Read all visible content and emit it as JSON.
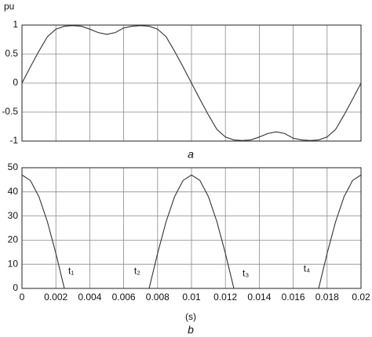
{
  "chart_data": [
    {
      "type": "line",
      "ylabel": "pu",
      "caption": "a",
      "x": [
        0,
        0.0005,
        0.001,
        0.0015,
        0.002,
        0.0025,
        0.003,
        0.0035,
        0.004,
        0.0045,
        0.005,
        0.0055,
        0.006,
        0.0065,
        0.007,
        0.0075,
        0.008,
        0.0085,
        0.009,
        0.0095,
        0.01,
        0.0105,
        0.011,
        0.0115,
        0.012,
        0.0125,
        0.013,
        0.0135,
        0.014,
        0.0145,
        0.015,
        0.0155,
        0.016,
        0.0165,
        0.017,
        0.0175,
        0.018,
        0.0185,
        0.019,
        0.0195,
        0.02
      ],
      "series": [
        {
          "color": "#333333",
          "values": [
            0,
            0.28,
            0.55,
            0.8,
            0.93,
            0.98,
            0.99,
            0.98,
            0.93,
            0.87,
            0.84,
            0.87,
            0.95,
            0.98,
            0.99,
            0.98,
            0.93,
            0.8,
            0.55,
            0.28,
            0,
            -0.28,
            -0.55,
            -0.8,
            -0.93,
            -0.98,
            -0.99,
            -0.98,
            -0.93,
            -0.87,
            -0.84,
            -0.87,
            -0.95,
            -0.98,
            -0.99,
            -0.98,
            -0.93,
            -0.8,
            -0.55,
            -0.28,
            0
          ]
        }
      ],
      "xlim": [
        0,
        0.02
      ],
      "xticks": [
        0,
        0.002,
        0.004,
        0.006,
        0.008,
        0.01,
        0.012,
        0.014,
        0.016,
        0.018,
        0.02
      ],
      "show_xtick_labels": false,
      "ylim": [
        -1,
        1
      ],
      "yticks": [
        -1,
        -0.5,
        0,
        0.5,
        1
      ],
      "grid": true
    },
    {
      "type": "line",
      "xlabel": "(s)",
      "caption": "b",
      "x": [
        0,
        0.0005,
        0.001,
        0.0015,
        0.002,
        0.0025,
        0.003,
        0.0035,
        0.004,
        0.0045,
        0.005,
        0.0055,
        0.006,
        0.0065,
        0.007,
        0.0075,
        0.008,
        0.0085,
        0.009,
        0.0095,
        0.01,
        0.0105,
        0.011,
        0.0115,
        0.012,
        0.0125,
        0.013,
        0.0135,
        0.014,
        0.0145,
        0.015,
        0.0155,
        0.016,
        0.0165,
        0.017,
        0.0175,
        0.018,
        0.0185,
        0.019,
        0.0195,
        0.02
      ],
      "series": [
        {
          "color": "#333333",
          "values": [
            47,
            44.7,
            38,
            27.6,
            14.5,
            0,
            null,
            null,
            null,
            null,
            null,
            null,
            null,
            null,
            null,
            0,
            14.5,
            27.6,
            38,
            44.7,
            47,
            44.7,
            38,
            27.6,
            14.5,
            0,
            null,
            null,
            null,
            null,
            null,
            null,
            null,
            null,
            null,
            0,
            14.5,
            27.6,
            38,
            44.7,
            47
          ]
        }
      ],
      "annotations": [
        {
          "text": "t₁",
          "x": 0.0029,
          "y": 7
        },
        {
          "text": "t₂",
          "x": 0.0068,
          "y": 7
        },
        {
          "text": "t₃",
          "x": 0.0132,
          "y": 6
        },
        {
          "text": "t₄",
          "x": 0.0168,
          "y": 8
        }
      ],
      "xlim": [
        0,
        0.02
      ],
      "xticks": [
        0,
        0.002,
        0.004,
        0.006,
        0.008,
        0.01,
        0.012,
        0.014,
        0.016,
        0.018,
        0.02
      ],
      "show_xtick_labels": true,
      "ylim": [
        0,
        50
      ],
      "yticks": [
        0,
        10,
        20,
        30,
        40,
        50
      ],
      "grid": true
    }
  ]
}
